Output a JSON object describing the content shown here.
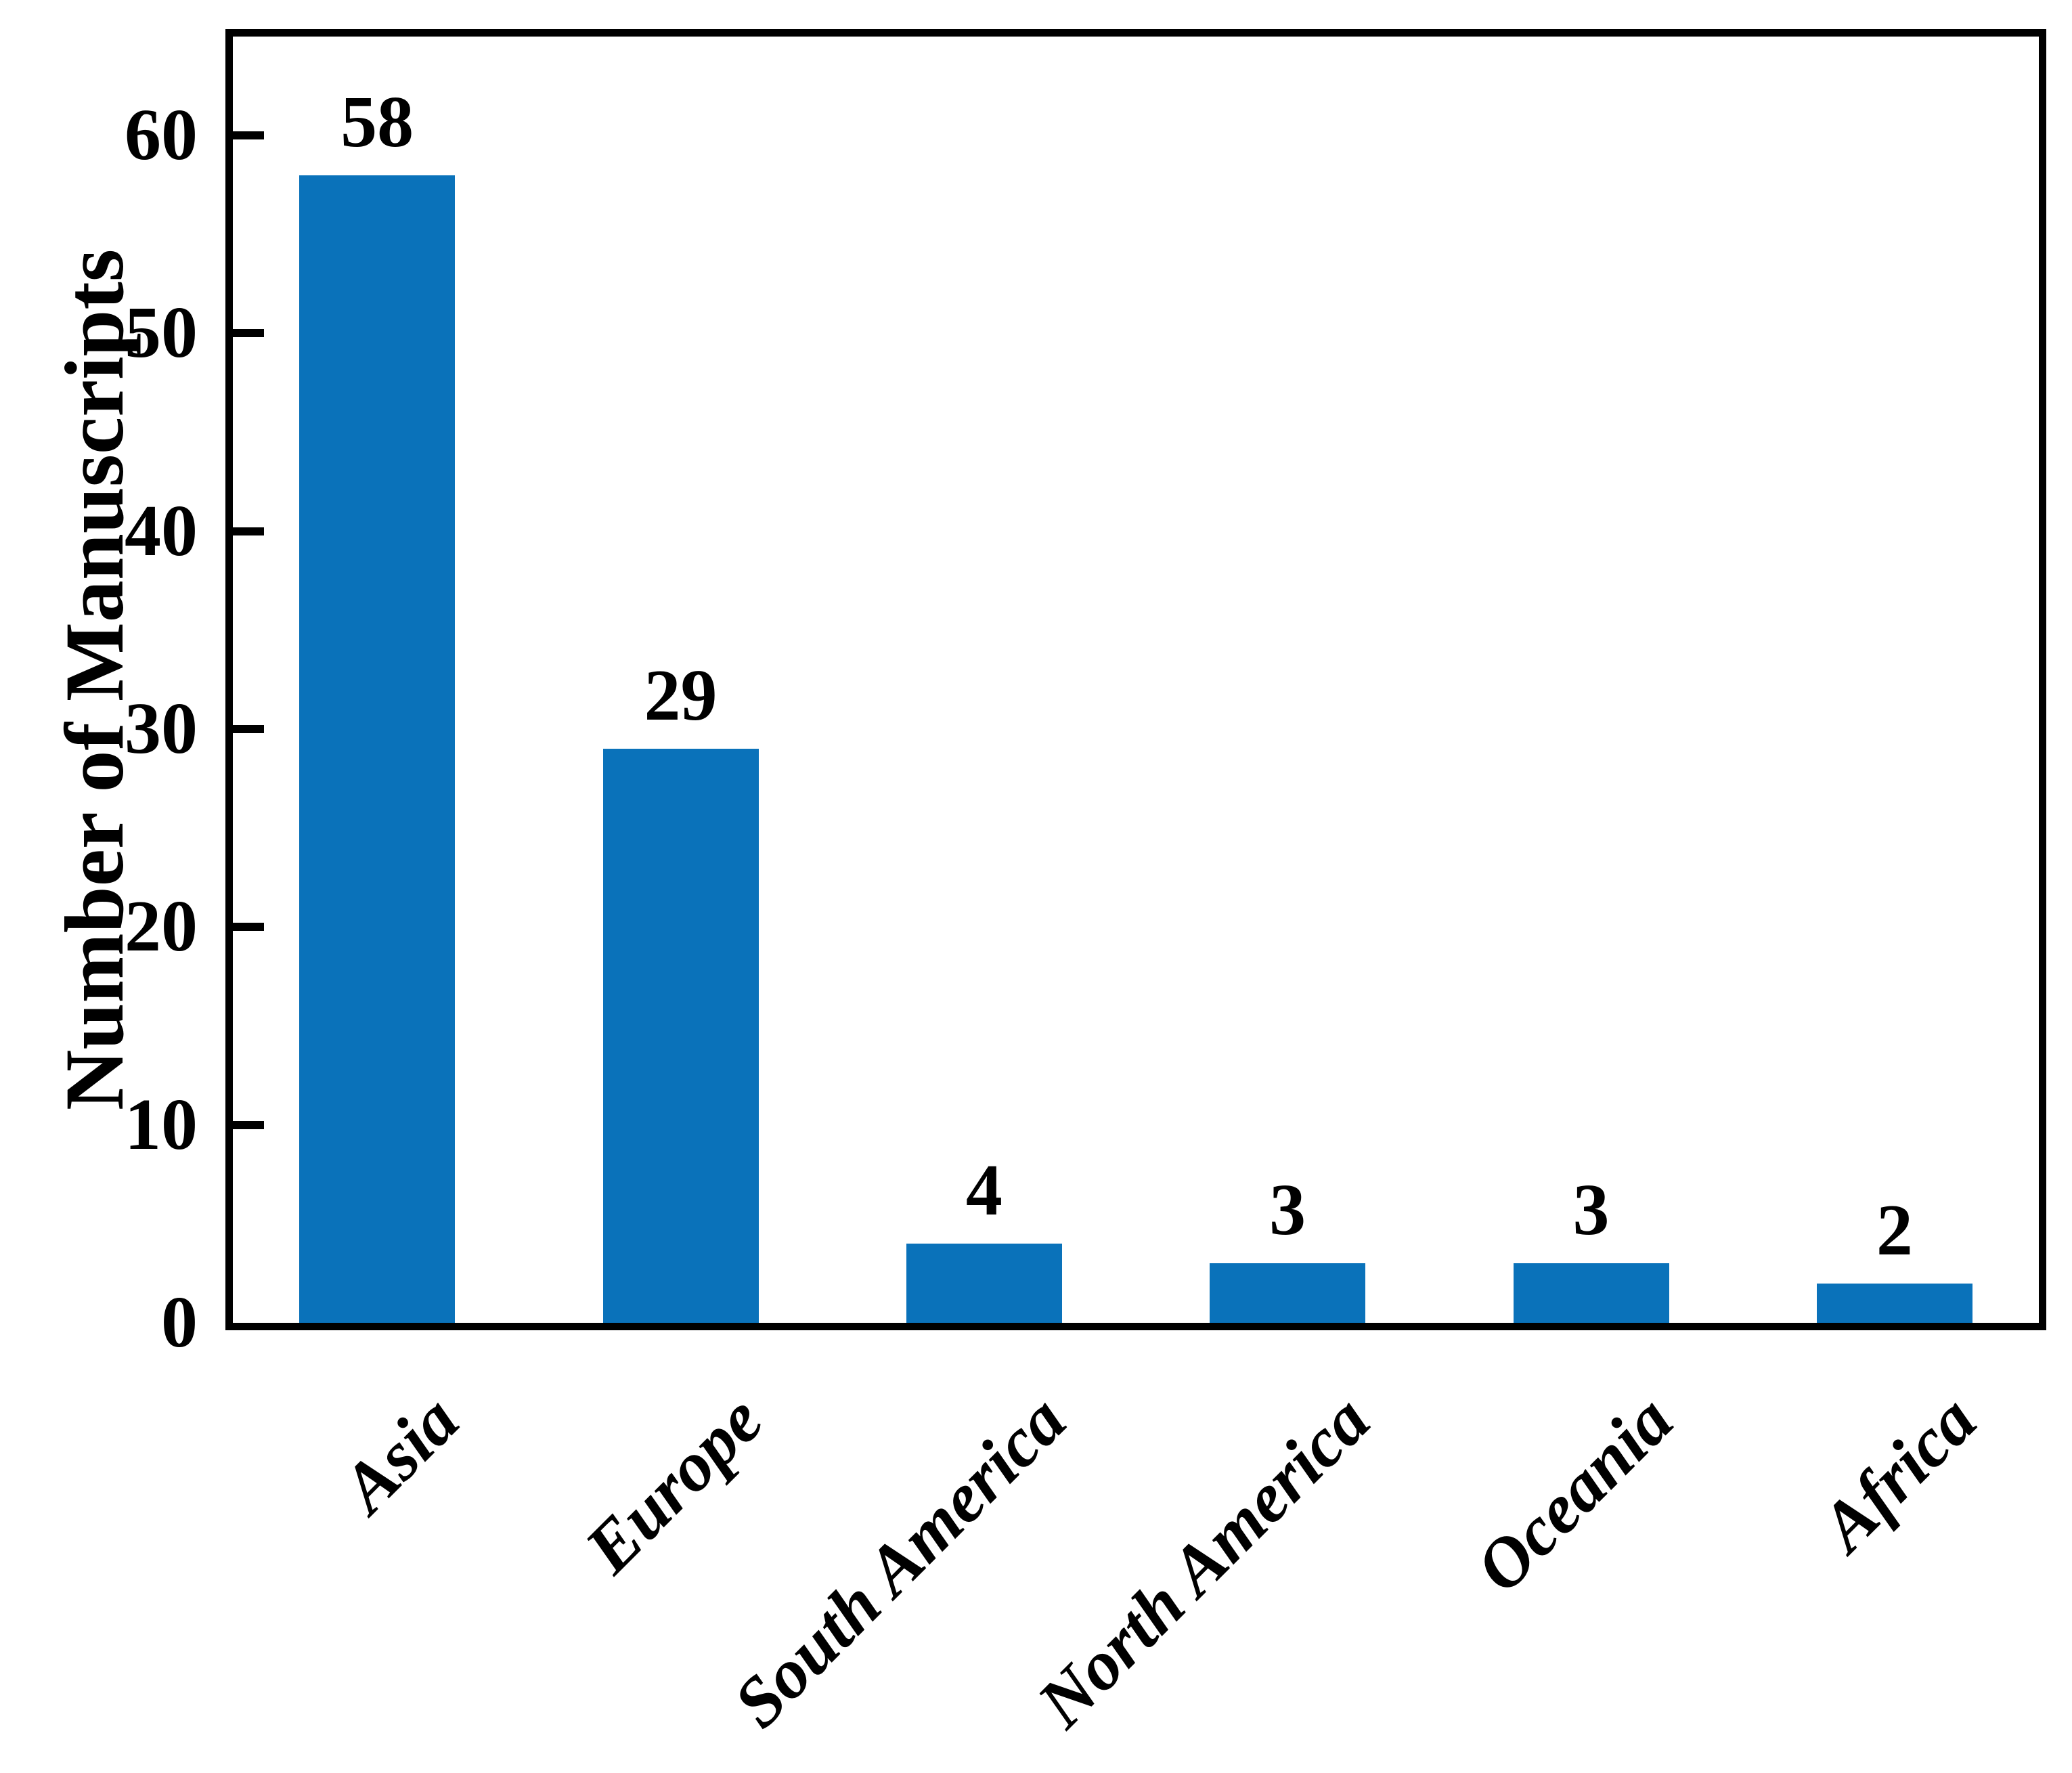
{
  "chart_data": {
    "type": "bar",
    "title": "",
    "categories": [
      "Asia",
      "Europe",
      "South America",
      "North America",
      "Oceania",
      "Africa"
    ],
    "values": [
      58,
      29,
      4,
      3,
      3,
      2
    ],
    "bar_labels": [
      "58",
      "29",
      "4",
      "3",
      "3",
      "2"
    ],
    "xlabel": "",
    "ylabel": "Number of Manuscripts",
    "ylim": [
      0,
      65
    ],
    "yticks": [
      0,
      10,
      20,
      30,
      40,
      50,
      60
    ],
    "grid": false,
    "legend": null,
    "colors": {
      "bar": "#0a72ba",
      "axis": "#000000",
      "text": "#000000",
      "background": "#ffffff"
    }
  }
}
